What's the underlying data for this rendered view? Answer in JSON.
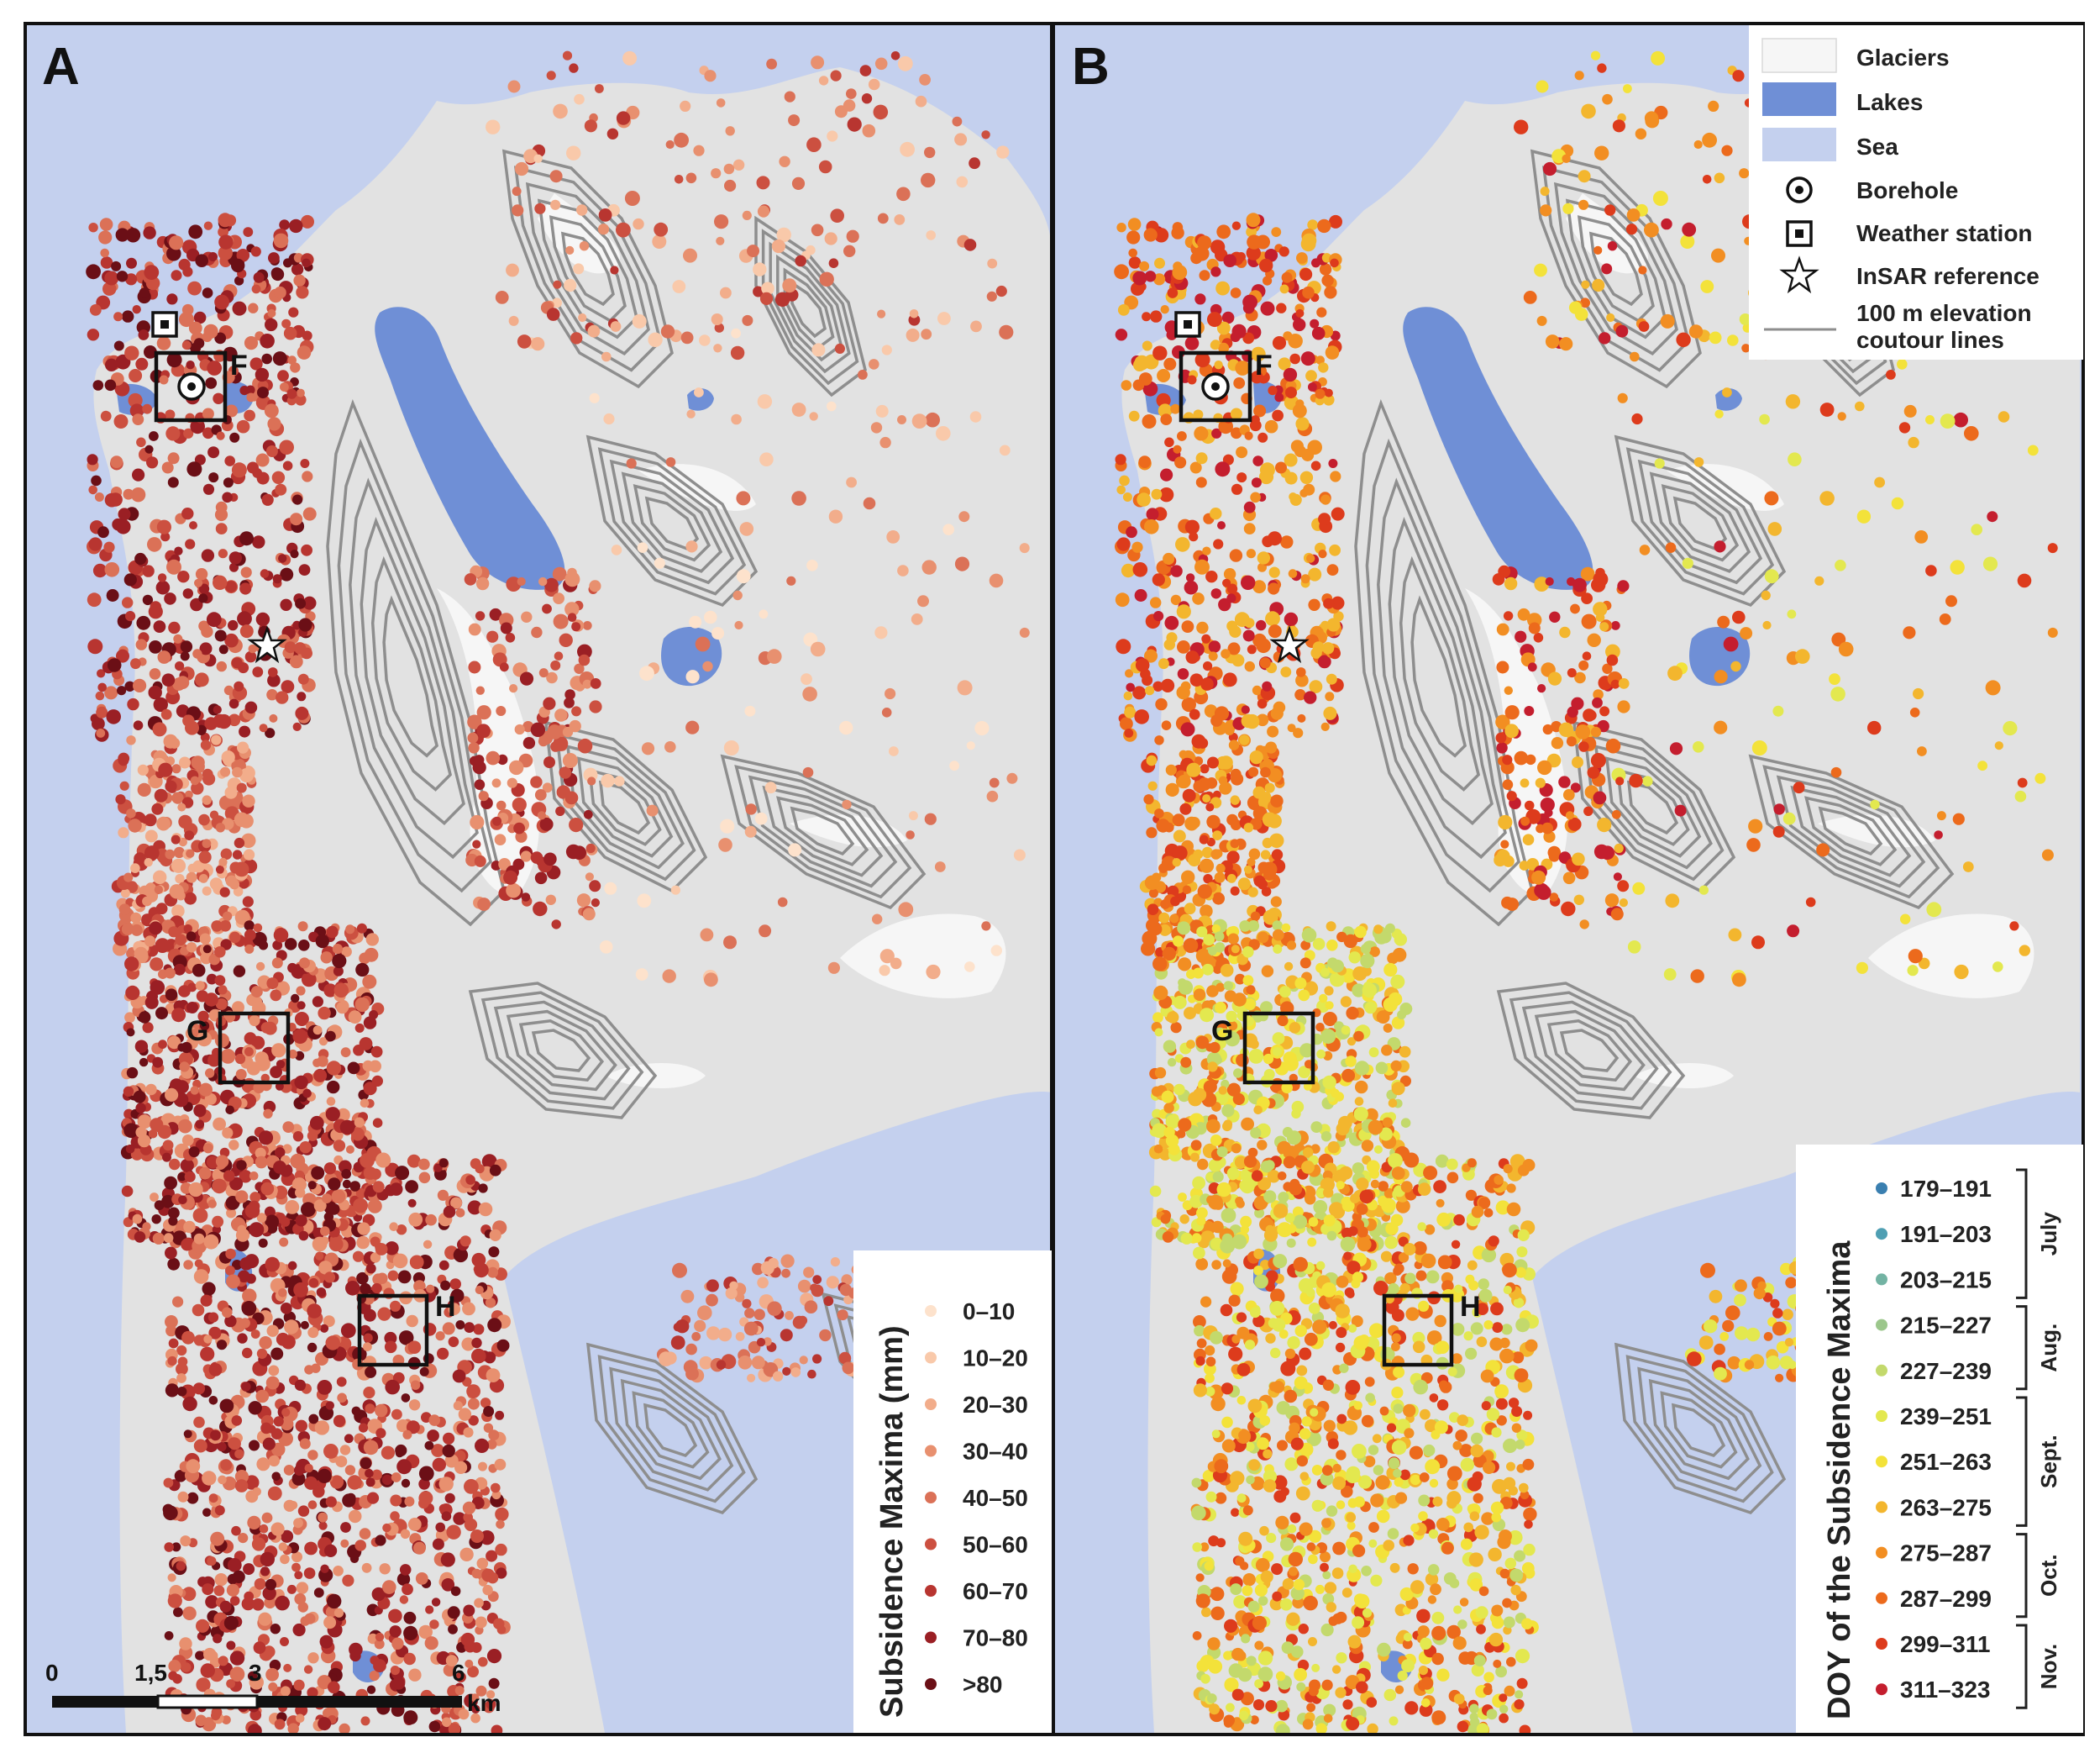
{
  "panels": [
    {
      "letter": "A"
    },
    {
      "letter": "B"
    }
  ],
  "sites": [
    {
      "label": "F"
    },
    {
      "label": "G"
    },
    {
      "label": "H"
    }
  ],
  "map_legend": {
    "items": [
      {
        "label": "Glaciers",
        "color": "#f6f6f6"
      },
      {
        "label": "Lakes",
        "color": "#6f8fd6"
      },
      {
        "label": "Sea",
        "color": "#c4d0ee"
      },
      {
        "label": "Borehole",
        "icon": "borehole-icon"
      },
      {
        "label": "Weather station",
        "icon": "weather-station-icon"
      },
      {
        "label": "InSAR reference",
        "icon": "star-icon"
      }
    ],
    "contour_label_line1": "100 m elevation",
    "contour_label_line2": "coutour lines"
  },
  "subsidence_legend": {
    "title": "Subsidence Maxima (mm)",
    "classes": [
      {
        "label": "0–10",
        "color": "#fde2cc"
      },
      {
        "label": "10–20",
        "color": "#f9c9aa"
      },
      {
        "label": "20–30",
        "color": "#f2ad8b"
      },
      {
        "label": "30–40",
        "color": "#e8906f"
      },
      {
        "label": "40–50",
        "color": "#db7157"
      },
      {
        "label": "50–60",
        "color": "#cc5040"
      },
      {
        "label": "60–70",
        "color": "#b83530"
      },
      {
        "label": "70–80",
        "color": "#9a1f24"
      },
      {
        "label": ">80",
        "color": "#6b0f16"
      }
    ]
  },
  "doy_legend": {
    "title": "DOY of the Subsidence Maxima",
    "classes": [
      {
        "label": "179–191",
        "color": "#3a7fb0"
      },
      {
        "label": "191–203",
        "color": "#4f9fb3"
      },
      {
        "label": "203–215",
        "color": "#73b3a3"
      },
      {
        "label": "215–227",
        "color": "#9cc78c"
      },
      {
        "label": "227–239",
        "color": "#c3d96c"
      },
      {
        "label": "239–251",
        "color": "#e3e84f"
      },
      {
        "label": "251–263",
        "color": "#f3e23a"
      },
      {
        "label": "263–275",
        "color": "#f3b62e"
      },
      {
        "label": "275–287",
        "color": "#f28e22"
      },
      {
        "label": "287–299",
        "color": "#ec6a1c"
      },
      {
        "label": "299–311",
        "color": "#dd3b1c"
      },
      {
        "label": "311–323",
        "color": "#c41e2e"
      }
    ],
    "months": [
      "July",
      "Aug.",
      "Sept.",
      "Oct.",
      "Nov."
    ]
  },
  "scale_bar": {
    "ticks": [
      "0",
      "1,5",
      "3",
      "6"
    ],
    "unit": "km"
  }
}
